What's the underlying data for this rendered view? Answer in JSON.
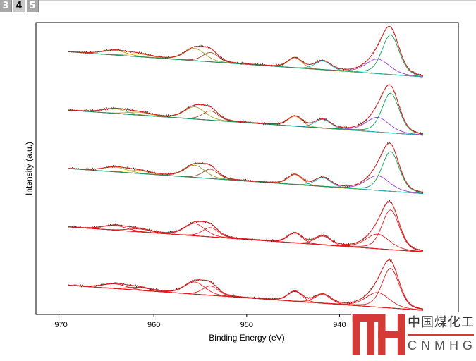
{
  "tabs": [
    {
      "label": "3",
      "active": false
    },
    {
      "label": "4",
      "active": true
    },
    {
      "label": "5",
      "active": false
    }
  ],
  "logo": {
    "mark": "MH",
    "cn_text": "中国煤化工",
    "en_text": "CNMHG",
    "color": "#d43a36"
  },
  "chart_data": {
    "type": "line",
    "title": "",
    "xlabel": "Binding Energy (eV)",
    "ylabel": "Intensity (a.u.)",
    "xlim": [
      972.7,
      927.2
    ],
    "ylim": [
      0,
      5
    ],
    "xticks": [
      970,
      960,
      950,
      940
    ],
    "x_range": [
      969.2,
      931.0
    ],
    "offsets": [
      4.5,
      3.5,
      2.5,
      1.5,
      0.5
    ],
    "baseline_drop": 0.43,
    "colored_fits": [
      true,
      true,
      true,
      false,
      false
    ],
    "components": [
      {
        "center": 964.2,
        "height": 0.08,
        "fwhm": 3.0,
        "color": "#8fbf2f"
      },
      {
        "center": 961.6,
        "height": 0.05,
        "fwhm": 3.0,
        "color": "#e08a1e"
      },
      {
        "center": 955.6,
        "height": 0.21,
        "fwhm": 2.6,
        "color": "#a0a020"
      },
      {
        "center": 953.9,
        "height": 0.16,
        "fwhm": 2.0,
        "color": "#a0522d"
      },
      {
        "center": 944.8,
        "height": 0.17,
        "fwhm": 1.8,
        "color": "#e08a1e"
      },
      {
        "center": 941.8,
        "height": 0.15,
        "fwhm": 2.0,
        "color": "#10b8c8"
      },
      {
        "center": 935.9,
        "height": 0.25,
        "fwhm": 3.0,
        "color": "#9a40d0"
      },
      {
        "center": 934.5,
        "height": 0.68,
        "fwhm": 2.2,
        "color": "#10a050"
      }
    ],
    "colors": {
      "envelope": "#e02020",
      "raw": "#202020",
      "baseline": "#3070d0"
    }
  }
}
